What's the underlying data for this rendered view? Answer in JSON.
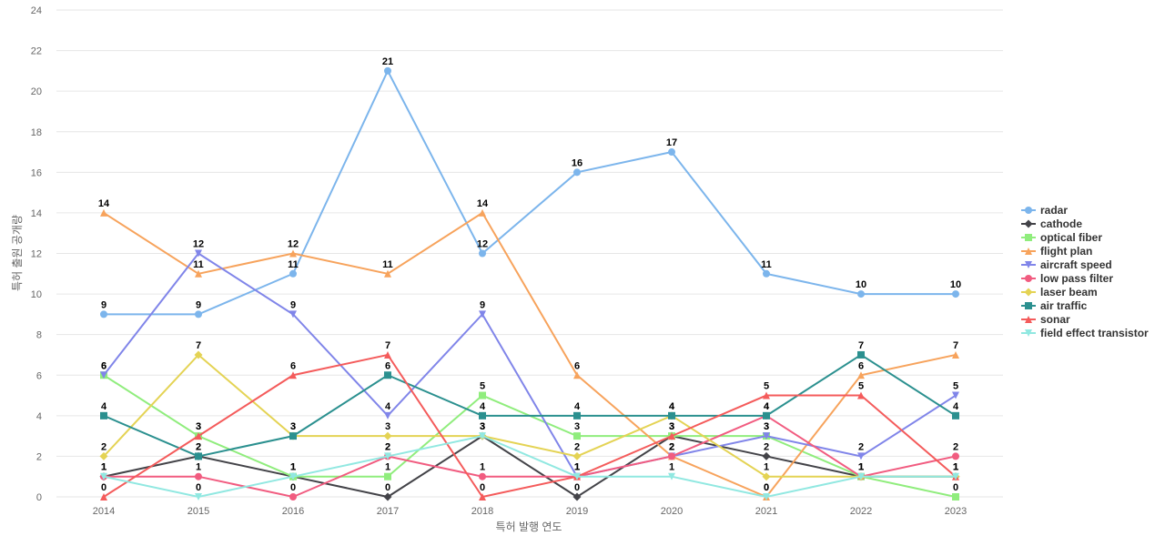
{
  "chart_data": {
    "type": "line",
    "title": "",
    "xlabel": "특허 발행 연도",
    "ylabel": "특허 출원 공개량",
    "x": [
      "2014",
      "2015",
      "2016",
      "2017",
      "2018",
      "2019",
      "2020",
      "2021",
      "2022",
      "2023"
    ],
    "ylim": [
      0,
      24
    ],
    "yticks": [
      0,
      2,
      4,
      6,
      8,
      10,
      12,
      14,
      16,
      18,
      20,
      22,
      24
    ],
    "grid": true,
    "legend_position": "right",
    "series": [
      {
        "name": "radar",
        "color": "#7cb5ec",
        "marker": "circle",
        "values": [
          9,
          9,
          11,
          21,
          12,
          16,
          17,
          11,
          10,
          10
        ]
      },
      {
        "name": "cathode",
        "color": "#434348",
        "marker": "diamond",
        "values": [
          1,
          2,
          1,
          0,
          3,
          0,
          3,
          2,
          1,
          1
        ]
      },
      {
        "name": "optical fiber",
        "color": "#90ed7d",
        "marker": "square",
        "values": [
          6,
          3,
          1,
          1,
          5,
          3,
          3,
          3,
          1,
          0
        ]
      },
      {
        "name": "flight plan",
        "color": "#f7a35c",
        "marker": "triangle",
        "values": [
          14,
          11,
          12,
          11,
          14,
          6,
          2,
          0,
          6,
          7
        ]
      },
      {
        "name": "aircraft speed",
        "color": "#8085e9",
        "marker": "triangle-down",
        "values": [
          6,
          12,
          9,
          4,
          9,
          1,
          2,
          3,
          2,
          5
        ]
      },
      {
        "name": "low pass filter",
        "color": "#f15c80",
        "marker": "circle",
        "values": [
          1,
          1,
          0,
          2,
          1,
          1,
          2,
          4,
          1,
          2
        ]
      },
      {
        "name": "laser beam",
        "color": "#e4d354",
        "marker": "diamond",
        "values": [
          2,
          7,
          3,
          3,
          3,
          2,
          4,
          1,
          1,
          1
        ]
      },
      {
        "name": "air traffic",
        "color": "#2b908f",
        "marker": "square",
        "values": [
          4,
          2,
          3,
          6,
          4,
          4,
          4,
          4,
          7,
          4
        ]
      },
      {
        "name": "sonar",
        "color": "#f45b5b",
        "marker": "triangle",
        "values": [
          0,
          3,
          6,
          7,
          0,
          1,
          3,
          5,
          5,
          1
        ]
      },
      {
        "name": "field effect transistor",
        "color": "#91e8e1",
        "marker": "triangle-down",
        "values": [
          1,
          0,
          1,
          2,
          3,
          1,
          1,
          0,
          1,
          1
        ]
      }
    ]
  }
}
